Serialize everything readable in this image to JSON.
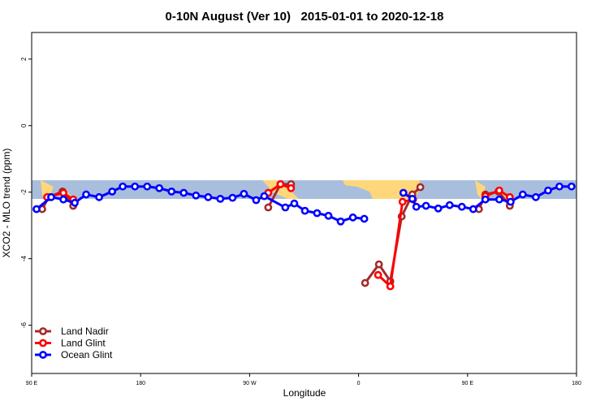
{
  "chart_data": {
    "type": "line",
    "title": "0-10N August (Ver 10)   2015-01-01 to 2020-12-18",
    "x_label": "Longitude",
    "y_label": "XCO2 - MLO trend (ppm)",
    "xlim": [
      90,
      540
    ],
    "xticks": [
      {
        "value": 90,
        "label": "90 E"
      },
      {
        "value": 180,
        "label": "180"
      },
      {
        "value": 270,
        "label": "90 W"
      },
      {
        "value": 360,
        "label": "0"
      },
      {
        "value": 450,
        "label": "90 E"
      },
      {
        "value": 540,
        "label": "180"
      }
    ],
    "ylim": [
      -7.45,
      2.8
    ],
    "yticks": [
      2,
      0,
      -2,
      -4,
      -6
    ],
    "legend": "bottom-left",
    "series": [
      {
        "name": "Land Nadir",
        "color": "#a52a2a",
        "x": [
          98.7,
          104.1,
          115.5,
          124.3,
          null,
          285.4,
          295.5,
          304.2,
          null,
          365.4,
          376.8,
          386.2,
          395.6,
          404.4,
          411.0,
          null,
          459.4,
          464.7,
          475.5,
          484.9
        ],
        "values": [
          -2.51,
          -2.15,
          -1.98,
          -2.41,
          null,
          -2.46,
          -1.76,
          -1.76,
          null,
          -4.73,
          -4.17,
          -4.68,
          -2.73,
          -2.07,
          -1.85,
          null,
          -2.51,
          -2.07,
          -1.98,
          -2.41
        ]
      },
      {
        "name": "Land Glint",
        "color": "#ff0000",
        "x": [
          102.8,
          116.2,
          124.3,
          null,
          285.4,
          295.5,
          304.2,
          null,
          376.1,
          386.2,
          396.3,
          405.0,
          null,
          464.7,
          476.2,
          484.9
        ],
        "values": [
          -2.15,
          -2.02,
          -2.22,
          null,
          -2.02,
          -1.76,
          -1.88,
          null,
          -4.49,
          -4.83,
          -2.29,
          -2.22,
          null,
          -2.12,
          -1.95,
          -2.15
        ]
      },
      {
        "name": "Ocean Glint",
        "color": "#0000ff",
        "x": [
          94.0,
          106.1,
          116.2,
          125.6,
          135.0,
          145.7,
          156.5,
          165.2,
          175.3,
          185.4,
          195.4,
          205.5,
          215.6,
          225.7,
          235.8,
          245.8,
          255.9,
          265.3,
          275.4,
          282.1,
          299.5,
          306.9,
          315.7,
          325.7,
          335.1,
          345.2,
          355.3,
          364.7,
          null,
          397.0,
          404.4,
          407.7,
          415.7,
          425.8,
          435.2,
          445.3,
          454.7,
          464.7,
          476.2,
          485.6,
          495.6,
          506.4,
          516.5,
          525.9,
          535.9
        ],
        "values": [
          -2.51,
          -2.15,
          -2.22,
          -2.32,
          -2.07,
          -2.15,
          -1.98,
          -1.83,
          -1.83,
          -1.83,
          -1.88,
          -1.98,
          -2.02,
          -2.1,
          -2.15,
          -2.2,
          -2.17,
          -2.05,
          -2.24,
          -2.12,
          -2.46,
          -2.34,
          -2.56,
          -2.63,
          -2.71,
          -2.88,
          -2.76,
          -2.8,
          null,
          -2.02,
          -2.2,
          -2.44,
          -2.41,
          -2.49,
          -2.39,
          -2.44,
          -2.51,
          -2.22,
          -2.22,
          -2.29,
          -2.07,
          -2.15,
          -1.95,
          -1.83,
          -1.83
        ]
      }
    ]
  }
}
